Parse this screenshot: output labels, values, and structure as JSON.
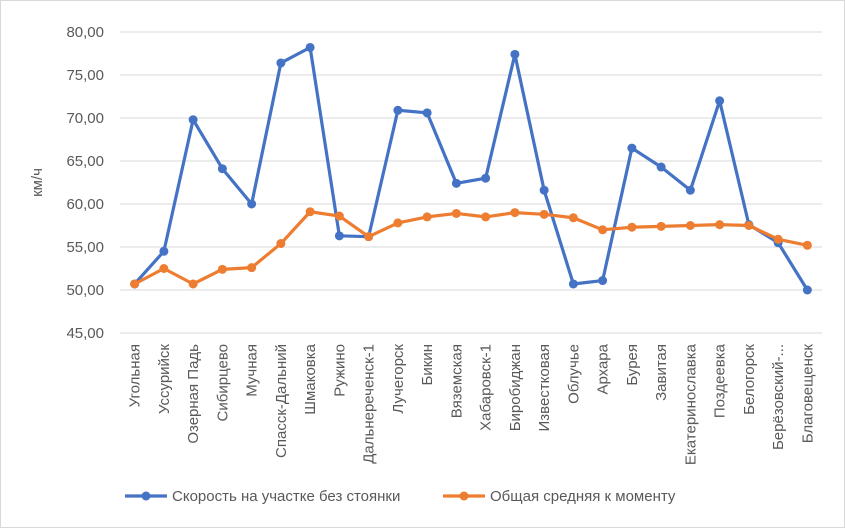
{
  "chart_data": {
    "type": "line",
    "title": "",
    "xlabel": "",
    "ylabel": "км/ч",
    "ylim": [
      45,
      80
    ],
    "yticks": [
      "45,00",
      "50,00",
      "55,00",
      "60,00",
      "65,00",
      "70,00",
      "75,00",
      "80,00"
    ],
    "ytick_values": [
      45,
      50,
      55,
      60,
      65,
      70,
      75,
      80
    ],
    "grid": true,
    "legend_position": "bottom",
    "categories": [
      "Угольная",
      "Уссурийск",
      "Озерная Падь",
      "Сибирцево",
      "Мучная",
      "Спасск-Дальний",
      "Шмаковка",
      "Ружино",
      "Дальнереченск-1",
      "Лучегорск",
      "Бикин",
      "Вяземская",
      "Хабаровск-1",
      "Биробиджан",
      "Известковая",
      "Облучье",
      "Архара",
      "Бурея",
      "Завитая",
      "Екатеринославка",
      "Поздеевка",
      "Белогорск",
      "Берёзовский-...",
      "Благовещенск"
    ],
    "series": [
      {
        "name": "Скорость на участке без стоянки",
        "color": "#4472c4",
        "values": [
          50.7,
          54.5,
          69.8,
          64.1,
          60.0,
          76.4,
          78.2,
          56.3,
          56.2,
          70.9,
          70.6,
          62.4,
          63.0,
          77.4,
          61.6,
          50.7,
          51.1,
          66.5,
          64.3,
          61.6,
          72.0,
          57.6,
          55.5,
          50.0
        ]
      },
      {
        "name": "Общая средняя к моменту",
        "color": "#ed7d31",
        "values": [
          50.7,
          52.5,
          50.7,
          52.4,
          52.6,
          55.4,
          59.1,
          58.6,
          56.2,
          57.8,
          58.5,
          58.9,
          58.5,
          59.0,
          58.8,
          58.4,
          57.0,
          57.3,
          57.4,
          57.5,
          57.6,
          57.5,
          55.9,
          55.2
        ]
      }
    ]
  }
}
